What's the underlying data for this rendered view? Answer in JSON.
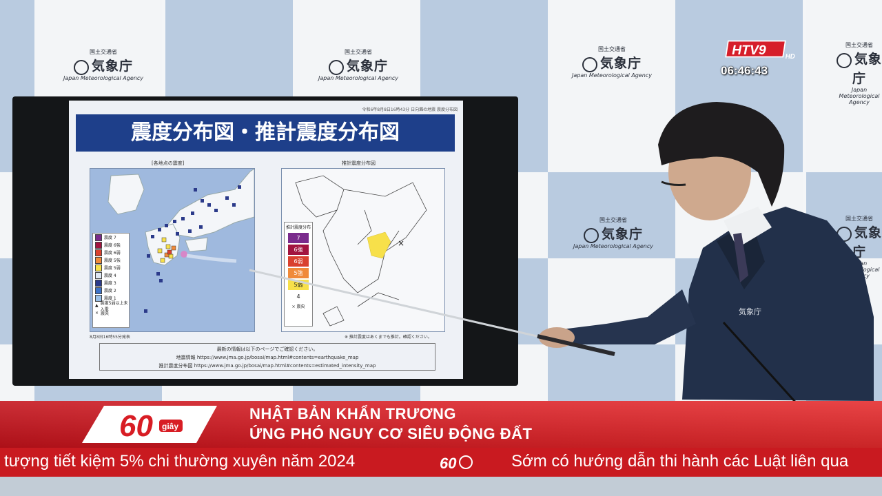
{
  "backdrop": {
    "agency_small": "国土交通省",
    "agency_name": "気象庁",
    "agency_en": "Japan Meteorological Agency"
  },
  "slide": {
    "title": "震度分布図・推計震度分布図",
    "meta": "令和6年8月8日16時43分 日向灘の地震 震度分布図",
    "left_map_label": "[各地点の震度]",
    "right_map_label": "推計震度分布図",
    "datestamp": "8月8日16時55分発表",
    "legend_left": [
      "震度 7",
      "震度 6強",
      "震度 6弱",
      "震度 5強",
      "震度 5弱",
      "震度 4",
      "震度 3",
      "震度 2",
      "震度 1",
      "震度5弱以上未入電",
      "震央"
    ],
    "legend_right_title": "推計震度分布",
    "legend_right": [
      "7",
      "6強",
      "6弱",
      "5強",
      "5弱",
      "4"
    ],
    "legend_right_note": "× 震央",
    "right_map_note": "※ 推計震度はあくまでも推計。確認ください。",
    "footer_line1": "最新の情報は以下のページでご確認ください。",
    "footer_line2": "地震情報 https://www.jma.go.jp/bosai/map.html#contents=earthquake_map",
    "footer_line3": "推計震度分布図 https://www.jma.go.jp/bosai/map.html#contents=estimated_intensity_map",
    "colors": {
      "title_bg": "#1e3f8a",
      "int7": "#7a2b8c",
      "int6p": "#a2143f",
      "int6m": "#d9412f",
      "int5p": "#f08a3a",
      "int5m": "#f7e04a"
    }
  },
  "person": {
    "jacket_label": "気象庁"
  },
  "overlay": {
    "channel": "HTV9",
    "channel_sub": "HD",
    "clock": "06:46:43",
    "badge_number": "60",
    "badge_word": "giây",
    "headline_line1": "NHẬT BẢN KHẨN TRƯƠNG",
    "headline_line2": "ỨNG PHÓ NGUY CƠ SIÊU ĐỘNG ĐẤT",
    "ticker_left": "tượng tiết kiệm 5% chi thường xuyên năm 2024",
    "ticker_right": "Sớm có hướng dẫn thi hành các Luật liên qua",
    "accent": "#d81d24"
  }
}
